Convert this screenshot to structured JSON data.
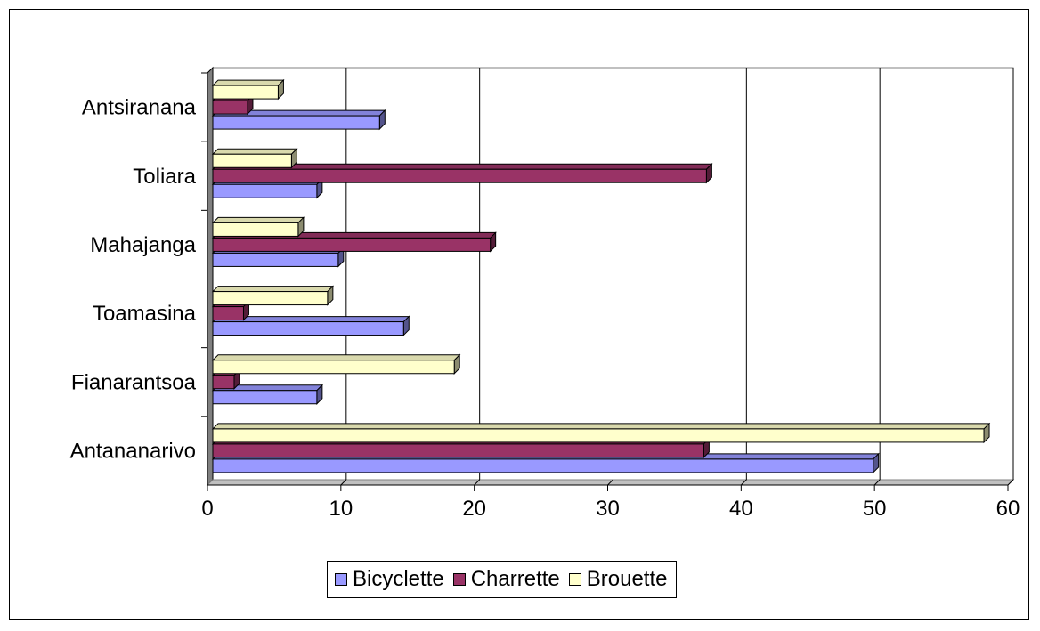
{
  "chart_data": {
    "type": "bar",
    "orientation": "horizontal",
    "style": "3d",
    "title": "",
    "xlabel": "",
    "ylabel": "",
    "categories": [
      "Antananarivo",
      "Fianarantsoa",
      "Toamasina",
      "Mahajanga",
      "Toliara",
      "Antsiranana"
    ],
    "series": [
      {
        "name": "Bicyclette",
        "color": "#9999ff",
        "values": [
          49.5,
          7.8,
          14.3,
          9.4,
          7.8,
          12.5
        ]
      },
      {
        "name": "Charrette",
        "color": "#993366",
        "values": [
          36.8,
          1.6,
          2.3,
          20.8,
          37.0,
          2.6
        ]
      },
      {
        "name": "Brouette",
        "color": "#ffffcc",
        "values": [
          57.8,
          18.1,
          8.6,
          6.4,
          5.9,
          4.9
        ]
      }
    ],
    "xlim": [
      0,
      60
    ],
    "xticks": [
      "0",
      "10",
      "20",
      "30",
      "40",
      "50",
      "60"
    ],
    "grid": "vertical",
    "legend_position": "bottom"
  }
}
